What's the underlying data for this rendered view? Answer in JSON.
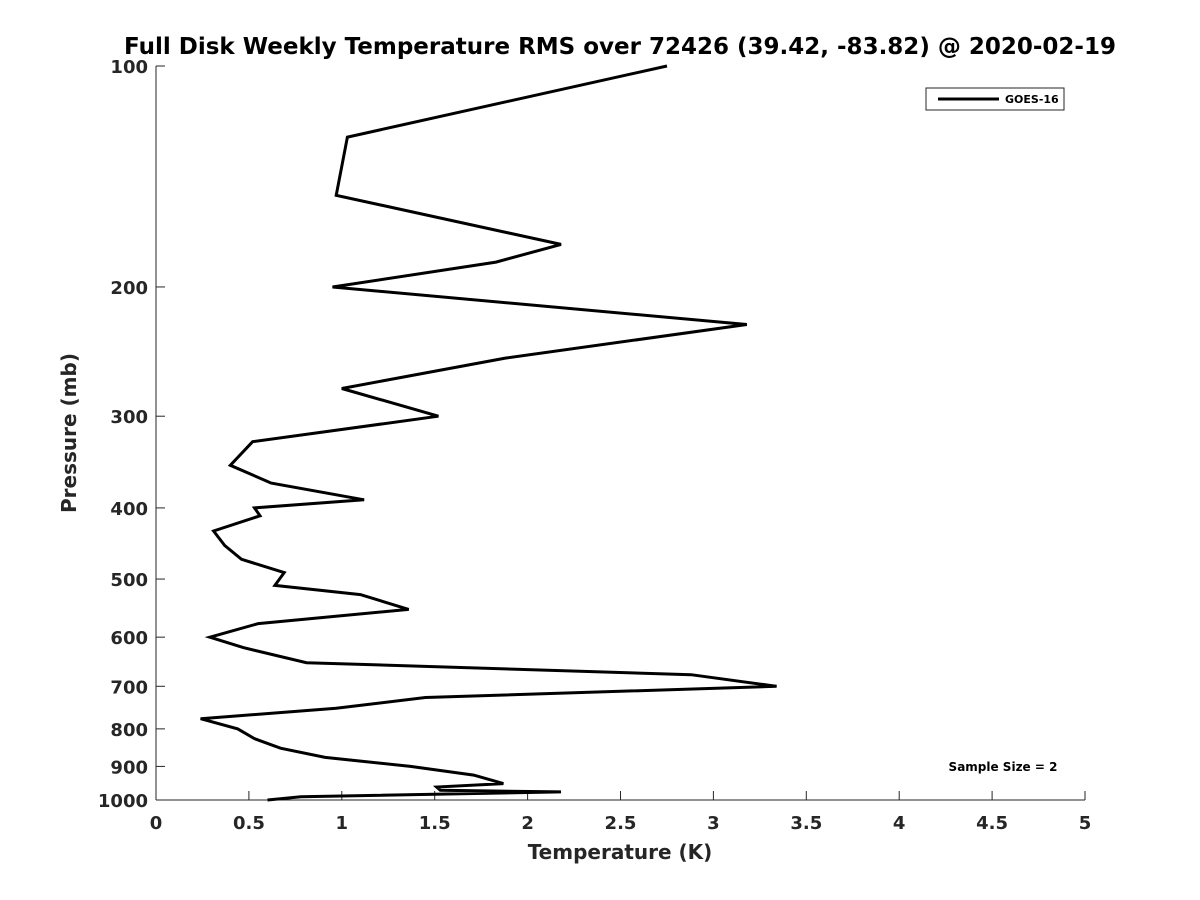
{
  "chart_data": {
    "type": "line",
    "title": "Full Disk Weekly Temperature RMS over 72426 (39.42, -83.82) @ 2020-02-19",
    "xlabel": "Temperature (K)",
    "ylabel": "Pressure (mb)",
    "xlim": [
      0,
      5
    ],
    "ylim": [
      100,
      1000
    ],
    "y_scale": "log",
    "y_reversed": true,
    "xticks": [
      0,
      0.5,
      1,
      1.5,
      2,
      2.5,
      3,
      3.5,
      4,
      4.5,
      5
    ],
    "xtick_labels": [
      "0",
      "0.5",
      "1",
      "1.5",
      "2",
      "2.5",
      "3",
      "3.5",
      "4",
      "4.5",
      "5"
    ],
    "yticks": [
      100,
      200,
      300,
      400,
      500,
      600,
      700,
      800,
      900,
      1000
    ],
    "ytick_labels": [
      "100",
      "200",
      "300",
      "400",
      "500",
      "600",
      "700",
      "800",
      "900",
      "1000"
    ],
    "grid": false,
    "legend_position": "top-right",
    "annotation": "Sample Size = 2",
    "series": [
      {
        "name": "GOES-16",
        "color": "#000000",
        "x": [
          2.75,
          1.03,
          0.97,
          2.18,
          1.83,
          0.95,
          3.18,
          1.88,
          1.0,
          1.52,
          0.52,
          0.4,
          0.62,
          1.12,
          0.53,
          0.56,
          0.31,
          0.37,
          0.46,
          0.69,
          0.64,
          1.1,
          1.36,
          0.55,
          0.29,
          0.47,
          0.81,
          2.88,
          3.34,
          1.45,
          0.97,
          0.24,
          0.44,
          0.53,
          0.67,
          0.91,
          1.37,
          1.71,
          1.87,
          1.51,
          1.53,
          2.18,
          0.78,
          0.6
        ],
        "y": [
          100,
          125,
          150,
          175,
          185,
          200,
          225,
          250,
          275,
          300,
          325,
          350,
          370,
          390,
          400,
          410,
          430,
          450,
          470,
          490,
          510,
          525,
          550,
          575,
          600,
          620,
          650,
          675,
          700,
          725,
          750,
          775,
          800,
          825,
          850,
          875,
          900,
          925,
          950,
          960,
          970,
          975,
          990,
          1000
        ]
      }
    ]
  }
}
